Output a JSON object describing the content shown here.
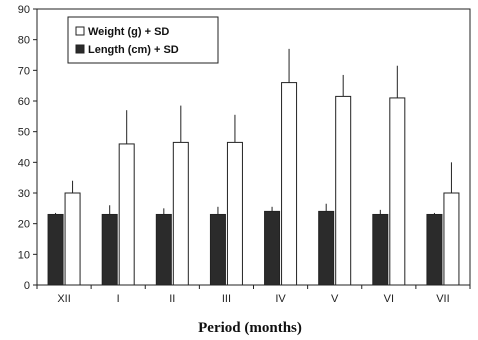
{
  "chart_data": {
    "type": "bar",
    "xlabel": "Period (months)",
    "ylabel": "",
    "ylim": [
      0,
      90
    ],
    "yticks": [
      0,
      10,
      20,
      30,
      40,
      50,
      60,
      70,
      80,
      90
    ],
    "grid": false,
    "legend_position": "top-left",
    "categories": [
      "XII",
      "I",
      "II",
      "III",
      "IV",
      "V",
      "VI",
      "VII"
    ],
    "series": [
      {
        "name": "Length (cm) + SD",
        "color": "#2b2b2b",
        "values": [
          23,
          23,
          23,
          23,
          24,
          24,
          23,
          23
        ],
        "sd": [
          0.5,
          3,
          2,
          2.5,
          1.5,
          2.5,
          1.5,
          0.5
        ]
      },
      {
        "name": "Weight (g) + SD",
        "color": "#ffffff",
        "values": [
          30,
          46,
          46.5,
          46.5,
          66,
          61.5,
          61,
          30
        ],
        "sd": [
          4,
          11,
          12,
          9,
          11,
          7,
          10.5,
          10
        ]
      }
    ]
  }
}
